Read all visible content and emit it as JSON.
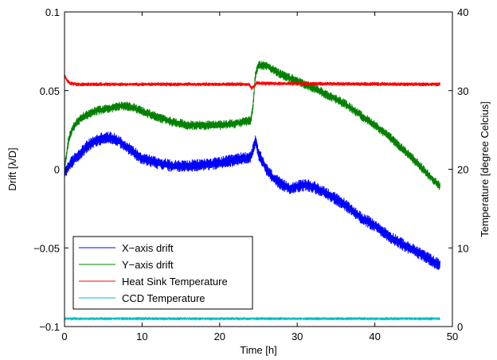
{
  "chart_data": {
    "type": "line",
    "title": "",
    "xlabel": "Time [h]",
    "ylabel_left": "Drift [λ/D]",
    "ylabel_right": "Temperature [degree Celcius]",
    "xlim": [
      0,
      50
    ],
    "ylim_left": [
      -0.1,
      0.1
    ],
    "ylim_right": [
      0,
      40
    ],
    "x_ticks": [
      "0",
      "10",
      "20",
      "30",
      "40",
      "50"
    ],
    "y_left_ticks": [
      "−0.1",
      "−0.05",
      "0",
      "0.05",
      "0.1"
    ],
    "y_right_ticks": [
      "0",
      "10",
      "20",
      "30",
      "40"
    ],
    "x_tick_values": [
      0,
      10,
      20,
      30,
      40,
      50
    ],
    "y_left_tick_values": [
      -0.1,
      -0.05,
      0,
      0.05,
      0.1
    ],
    "y_right_tick_values": [
      0,
      10,
      20,
      30,
      40
    ],
    "grid": false,
    "legend_position": "bottom-left",
    "series": [
      {
        "name": "X−axis drift",
        "axis": "left",
        "color": "#0000ff",
        "noise": 0.004,
        "points": [
          [
            0,
            -0.002
          ],
          [
            1,
            0.005
          ],
          [
            2,
            0.01
          ],
          [
            3,
            0.015
          ],
          [
            4,
            0.018
          ],
          [
            5,
            0.02
          ],
          [
            6,
            0.02
          ],
          [
            7,
            0.018
          ],
          [
            8,
            0.014
          ],
          [
            10,
            0.007
          ],
          [
            12,
            0.004
          ],
          [
            14,
            0.002
          ],
          [
            16,
            0.002
          ],
          [
            18,
            0.003
          ],
          [
            20,
            0.004
          ],
          [
            22,
            0.006
          ],
          [
            24,
            0.008
          ],
          [
            24.3,
            0.012
          ],
          [
            24.6,
            0.018
          ],
          [
            25,
            0.01
          ],
          [
            26,
            0.0
          ],
          [
            27,
            -0.006
          ],
          [
            28,
            -0.01
          ],
          [
            29,
            -0.012
          ],
          [
            30,
            -0.011
          ],
          [
            31,
            -0.01
          ],
          [
            32,
            -0.011
          ],
          [
            34,
            -0.016
          ],
          [
            36,
            -0.022
          ],
          [
            38,
            -0.03
          ],
          [
            40,
            -0.036
          ],
          [
            42,
            -0.043
          ],
          [
            44,
            -0.049
          ],
          [
            46,
            -0.054
          ],
          [
            47,
            -0.057
          ],
          [
            48,
            -0.06
          ],
          [
            48.4,
            -0.061
          ]
        ]
      },
      {
        "name": "Y−axis drift",
        "axis": "left",
        "color": "#008000",
        "noise": 0.003,
        "points": [
          [
            0,
            0.0
          ],
          [
            0.5,
            0.018
          ],
          [
            1,
            0.026
          ],
          [
            2,
            0.032
          ],
          [
            3,
            0.035
          ],
          [
            4,
            0.037
          ],
          [
            5,
            0.038
          ],
          [
            6,
            0.039
          ],
          [
            7,
            0.04
          ],
          [
            8,
            0.04
          ],
          [
            9,
            0.039
          ],
          [
            10,
            0.037
          ],
          [
            12,
            0.033
          ],
          [
            14,
            0.03
          ],
          [
            16,
            0.028
          ],
          [
            18,
            0.028
          ],
          [
            20,
            0.028
          ],
          [
            22,
            0.029
          ],
          [
            23,
            0.03
          ],
          [
            24,
            0.031
          ],
          [
            24.3,
            0.04
          ],
          [
            24.6,
            0.06
          ],
          [
            25,
            0.066
          ],
          [
            26,
            0.066
          ],
          [
            27,
            0.063
          ],
          [
            28,
            0.06
          ],
          [
            30,
            0.056
          ],
          [
            32,
            0.052
          ],
          [
            34,
            0.047
          ],
          [
            36,
            0.042
          ],
          [
            38,
            0.035
          ],
          [
            40,
            0.028
          ],
          [
            42,
            0.02
          ],
          [
            44,
            0.011
          ],
          [
            46,
            0.001
          ],
          [
            47,
            -0.004
          ],
          [
            48,
            -0.009
          ],
          [
            48.4,
            -0.011
          ]
        ]
      },
      {
        "name": "Heat Sink Temperature",
        "axis": "right",
        "color": "#ff0000",
        "noise": 0.25,
        "points": [
          [
            0,
            32.0
          ],
          [
            0.3,
            31.3
          ],
          [
            0.8,
            30.9
          ],
          [
            1.5,
            30.8
          ],
          [
            23.8,
            30.8
          ],
          [
            24.1,
            30.3
          ],
          [
            24.4,
            30.5
          ],
          [
            24.8,
            31.0
          ],
          [
            25.5,
            30.9
          ],
          [
            48.4,
            30.8
          ]
        ]
      },
      {
        "name": "CCD Temperature",
        "axis": "right",
        "color": "#00bfbf",
        "noise": 0.08,
        "points": [
          [
            0,
            1.0
          ],
          [
            48.4,
            1.0
          ]
        ]
      }
    ]
  }
}
